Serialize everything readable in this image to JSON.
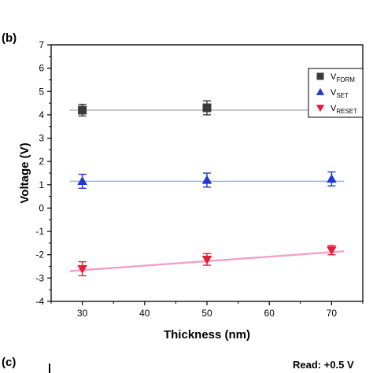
{
  "panel_b_label": "(b)",
  "panel_c_label": "(c)",
  "panel_c_read_text": "Read: +0.5 V",
  "chart_data": {
    "type": "scatter",
    "title": "",
    "xlabel": "Thickness (nm)",
    "ylabel": "Voltage (V)",
    "xlim": [
      25,
      75
    ],
    "ylim": [
      -4,
      7
    ],
    "xticks": [
      30,
      40,
      50,
      60,
      70
    ],
    "yticks": [
      -4,
      -3,
      -2,
      -1,
      0,
      1,
      2,
      3,
      4,
      5,
      6,
      7
    ],
    "grid": false,
    "legend_position": "top-right",
    "x": [
      30,
      50,
      70
    ],
    "series": [
      {
        "name": "V_FORM",
        "label_main": "V",
        "label_sub": "FORM",
        "marker": "square",
        "color": "#3a3a3a",
        "fit_color": "#b8b8b8",
        "values": [
          4.2,
          4.3,
          4.25
        ],
        "errors": [
          0.25,
          0.3,
          0.3
        ],
        "fit": [
          4.2,
          4.2
        ]
      },
      {
        "name": "V_SET",
        "label_main": "V",
        "label_sub": "SET",
        "marker": "triangle-up",
        "color": "#1f37d6",
        "fit_color": "#9fb0e8",
        "values": [
          1.15,
          1.2,
          1.25
        ],
        "errors": [
          0.3,
          0.3,
          0.3
        ],
        "fit": [
          1.15,
          1.15
        ]
      },
      {
        "name": "V_RESET",
        "label_main": "V",
        "label_sub": "RESET",
        "marker": "triangle-down",
        "color": "#e81c3a",
        "fit_color": "#f0a0c8",
        "values": [
          -2.6,
          -2.2,
          -1.8
        ],
        "errors": [
          0.3,
          0.25,
          0.2
        ],
        "fit": [
          -2.7,
          -1.85
        ]
      }
    ]
  }
}
